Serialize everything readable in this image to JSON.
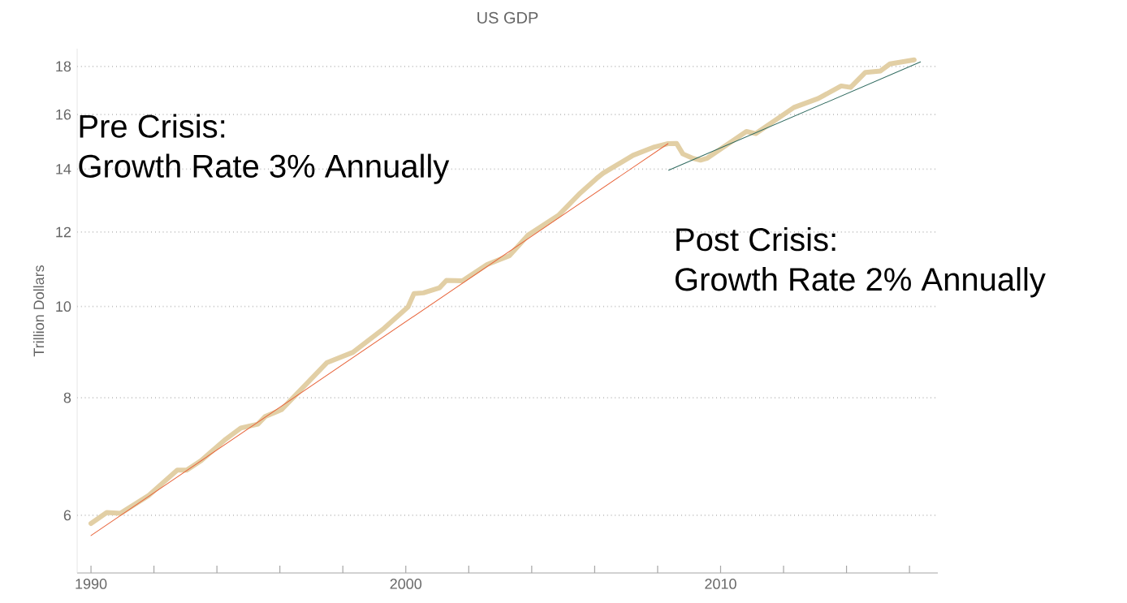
{
  "chart_data": {
    "type": "line",
    "title": "US GDP",
    "ylabel": "Trillion Dollars",
    "annotations": [
      "Pre Crisis:",
      "Growth Rate 3% Annually",
      "Post Crisis:",
      "Growth Rate 2% Annually"
    ],
    "xlim": [
      1989.56,
      2016.9
    ],
    "ylim": [
      5.21,
      18.8
    ],
    "log": "y",
    "grid": "y",
    "line_style": "solid",
    "xticks": [
      1990,
      {
        "value": 1992,
        "label": null
      },
      {
        "value": 1994,
        "label": null
      },
      {
        "value": 1996,
        "label": null
      },
      {
        "value": 1998,
        "label": null
      },
      2000,
      {
        "value": 2002,
        "label": null
      },
      {
        "value": 2004,
        "label": null
      },
      {
        "value": 2006,
        "label": null
      },
      {
        "value": 2008,
        "label": null
      },
      2010,
      {
        "value": 2012,
        "label": null
      },
      {
        "value": 2014,
        "label": null
      },
      {
        "value": 2016,
        "label": null
      }
    ],
    "yticks": [
      6,
      8,
      10,
      12,
      14,
      16,
      18
    ],
    "series": [
      {
        "color": "#e2cfa5",
        "x": [
          1990.0,
          1990.5,
          1990.94,
          1991.84,
          1992.74,
          1993.04,
          1993.5,
          1994.24,
          1994.76,
          1995.3,
          1995.53,
          1996.05,
          1997.5,
          1998.32,
          1999.31,
          2000.07,
          2000.26,
          2000.56,
          2001.07,
          2001.29,
          2001.8,
          2002.58,
          2003.3,
          2003.87,
          2004.85,
          2005.54,
          2006.06,
          2006.27,
          2007.22,
          2007.9,
          2008.33,
          2008.6,
          2008.8,
          2009.1,
          2009.36,
          2009.58,
          2010.82,
          2011.12,
          2012.33,
          2013.1,
          2013.83,
          2014.13,
          2014.6,
          2015.08,
          2015.38,
          2016.15
        ],
        "values": [
          5.88,
          6.04,
          6.03,
          6.3,
          6.7,
          6.7,
          6.86,
          7.21,
          7.43,
          7.5,
          7.64,
          7.77,
          8.72,
          8.94,
          9.48,
          9.99,
          10.32,
          10.34,
          10.47,
          10.66,
          10.65,
          11.08,
          11.33,
          11.9,
          12.5,
          13.2,
          13.68,
          13.86,
          14.48,
          14.78,
          14.9,
          14.91,
          14.53,
          14.38,
          14.31,
          14.38,
          15.35,
          15.27,
          16.28,
          16.64,
          17.16,
          17.1,
          17.74,
          17.8,
          18.11,
          18.29
        ]
      },
      {
        "color": "#e8663d",
        "x": [
          1990.0,
          2008.33
        ],
        "values": [
          5.71,
          14.9
        ]
      },
      {
        "color": "#2f6a5f",
        "x": [
          2008.35,
          2016.35
        ],
        "values": [
          13.96,
          18.2
        ]
      }
    ]
  }
}
